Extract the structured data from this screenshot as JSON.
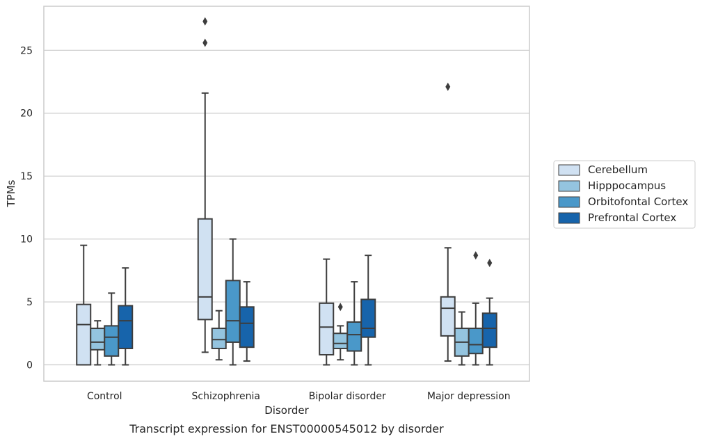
{
  "caption": "Transcript expression for ENST00000545012 by disorder",
  "chart_data": {
    "type": "box",
    "xlabel": "Disorder",
    "ylabel": "TPMs",
    "ylim": [
      -1.3,
      28.5
    ],
    "yticks": [
      0,
      5,
      10,
      15,
      20,
      25
    ],
    "grid": "horizontal",
    "legend_position": "right",
    "categories": [
      "Control",
      "Schizophrenia",
      "Bipolar disorder",
      "Major depression"
    ],
    "series": [
      {
        "name": "Cerebellum",
        "color": "#d0e1f2",
        "boxes": [
          {
            "whislo": 0.0,
            "q1": 0.0,
            "med": 3.2,
            "q3": 4.8,
            "whishi": 9.5,
            "fliers": []
          },
          {
            "whislo": 1.0,
            "q1": 3.6,
            "med": 5.4,
            "q3": 11.6,
            "whishi": 21.6,
            "fliers": [
              25.6,
              27.3
            ]
          },
          {
            "whislo": 0.0,
            "q1": 0.8,
            "med": 3.0,
            "q3": 4.9,
            "whishi": 8.4,
            "fliers": []
          },
          {
            "whislo": 0.3,
            "q1": 2.3,
            "med": 4.5,
            "q3": 5.4,
            "whishi": 9.3,
            "fliers": [
              22.1
            ]
          }
        ]
      },
      {
        "name": "Hipppocampus",
        "color": "#94c4df",
        "boxes": [
          {
            "whislo": 0.0,
            "q1": 1.2,
            "med": 1.8,
            "q3": 2.9,
            "whishi": 3.5,
            "fliers": []
          },
          {
            "whislo": 0.4,
            "q1": 1.3,
            "med": 2.0,
            "q3": 2.9,
            "whishi": 4.3,
            "fliers": []
          },
          {
            "whislo": 0.4,
            "q1": 1.3,
            "med": 1.7,
            "q3": 2.5,
            "whishi": 3.1,
            "fliers": [
              4.6
            ]
          },
          {
            "whislo": 0.0,
            "q1": 0.7,
            "med": 1.8,
            "q3": 2.9,
            "whishi": 4.2,
            "fliers": []
          }
        ]
      },
      {
        "name": "Orbitofontal Cortex",
        "color": "#4a98c9",
        "boxes": [
          {
            "whislo": 0.0,
            "q1": 0.7,
            "med": 2.2,
            "q3": 3.1,
            "whishi": 5.7,
            "fliers": []
          },
          {
            "whislo": 0.0,
            "q1": 1.8,
            "med": 3.5,
            "q3": 6.7,
            "whishi": 10.0,
            "fliers": []
          },
          {
            "whislo": 0.0,
            "q1": 1.1,
            "med": 2.4,
            "q3": 3.4,
            "whishi": 6.6,
            "fliers": []
          },
          {
            "whislo": 0.0,
            "q1": 0.9,
            "med": 1.6,
            "q3": 2.9,
            "whishi": 4.9,
            "fliers": [
              8.7
            ]
          }
        ]
      },
      {
        "name": "Prefrontal Cortex",
        "color": "#1764ab",
        "boxes": [
          {
            "whislo": 0.0,
            "q1": 1.3,
            "med": 3.5,
            "q3": 4.7,
            "whishi": 7.7,
            "fliers": []
          },
          {
            "whislo": 0.3,
            "q1": 1.4,
            "med": 3.3,
            "q3": 4.6,
            "whishi": 6.6,
            "fliers": []
          },
          {
            "whislo": 0.0,
            "q1": 2.2,
            "med": 2.9,
            "q3": 5.2,
            "whishi": 8.7,
            "fliers": []
          },
          {
            "whislo": 0.0,
            "q1": 1.4,
            "med": 2.9,
            "q3": 4.1,
            "whishi": 5.3,
            "fliers": [
              8.1
            ]
          }
        ]
      }
    ]
  }
}
